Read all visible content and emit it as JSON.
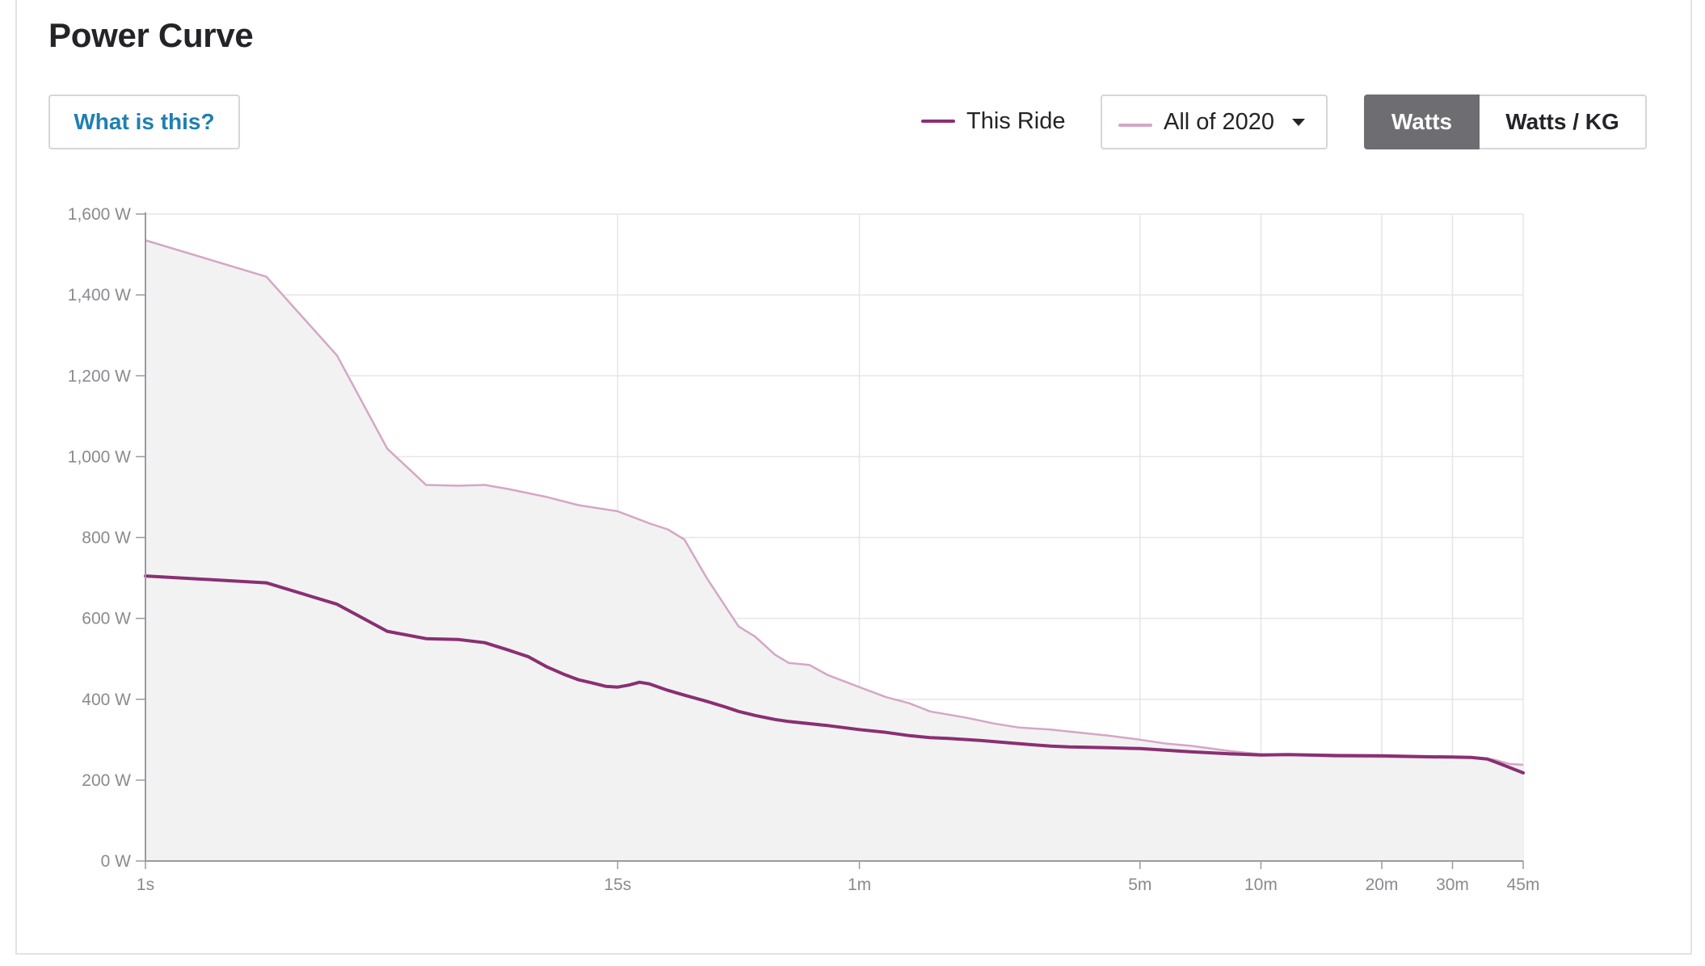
{
  "header": {
    "title": "Power Curve"
  },
  "controls": {
    "what_is_this": "What is this?",
    "legend_this_ride": "This Ride",
    "comparison_select": "All of 2020",
    "unit_toggle": {
      "active": "Watts",
      "inactive": "Watts / KG"
    }
  },
  "colors": {
    "this_ride": "#8a2f72",
    "comparison": "#d4a7c6",
    "area_fill": "#f2f2f3",
    "grid": "#e6e6e8"
  },
  "chart_data": {
    "type": "line",
    "title": "Power Curve",
    "xlabel": "",
    "ylabel": "",
    "x_unit": "seconds",
    "x_scale": "log",
    "xlim": [
      1,
      2700
    ],
    "ylim": [
      0,
      1600
    ],
    "y_ticks": [
      {
        "value": 0,
        "label": "0 W"
      },
      {
        "value": 200,
        "label": "200 W"
      },
      {
        "value": 400,
        "label": "400 W"
      },
      {
        "value": 600,
        "label": "600 W"
      },
      {
        "value": 800,
        "label": "800 W"
      },
      {
        "value": 1000,
        "label": "1,000 W"
      },
      {
        "value": 1200,
        "label": "1,200 W"
      },
      {
        "value": 1400,
        "label": "1,400 W"
      },
      {
        "value": 1600,
        "label": "1,600 W"
      }
    ],
    "x_ticks": [
      {
        "value": 1,
        "label": "1s"
      },
      {
        "value": 15,
        "label": "15s"
      },
      {
        "value": 60,
        "label": "1m"
      },
      {
        "value": 300,
        "label": "5m"
      },
      {
        "value": 600,
        "label": "10m"
      },
      {
        "value": 1200,
        "label": "20m"
      },
      {
        "value": 1800,
        "label": "30m"
      },
      {
        "value": 2700,
        "label": "45m"
      }
    ],
    "grid": true,
    "legend": "top-right",
    "series": [
      {
        "name": "All of 2020",
        "style": "area",
        "points": [
          [
            1,
            1535
          ],
          [
            2,
            1445
          ],
          [
            3,
            1250
          ],
          [
            4,
            1020
          ],
          [
            5,
            930
          ],
          [
            6,
            928
          ],
          [
            7,
            930
          ],
          [
            8,
            920
          ],
          [
            10,
            900
          ],
          [
            12,
            880
          ],
          [
            15,
            865
          ],
          [
            18,
            835
          ],
          [
            20,
            820
          ],
          [
            22,
            795
          ],
          [
            25,
            700
          ],
          [
            30,
            580
          ],
          [
            33,
            555
          ],
          [
            37,
            510
          ],
          [
            40,
            490
          ],
          [
            45,
            485
          ],
          [
            50,
            460
          ],
          [
            60,
            430
          ],
          [
            70,
            405
          ],
          [
            80,
            390
          ],
          [
            90,
            370
          ],
          [
            110,
            355
          ],
          [
            130,
            340
          ],
          [
            150,
            330
          ],
          [
            180,
            325
          ],
          [
            200,
            320
          ],
          [
            250,
            310
          ],
          [
            300,
            300
          ],
          [
            350,
            290
          ],
          [
            400,
            285
          ],
          [
            500,
            272
          ],
          [
            600,
            264
          ],
          [
            700,
            262
          ],
          [
            900,
            258
          ],
          [
            1200,
            257
          ],
          [
            1500,
            256
          ],
          [
            1800,
            255
          ],
          [
            2100,
            254
          ],
          [
            2300,
            250
          ],
          [
            2500,
            240
          ],
          [
            2700,
            238
          ]
        ]
      },
      {
        "name": "This Ride",
        "style": "line",
        "points": [
          [
            1,
            705
          ],
          [
            2,
            688
          ],
          [
            3,
            635
          ],
          [
            4,
            568
          ],
          [
            5,
            550
          ],
          [
            6,
            548
          ],
          [
            7,
            540
          ],
          [
            8,
            522
          ],
          [
            9,
            505
          ],
          [
            10,
            480
          ],
          [
            11,
            462
          ],
          [
            12,
            448
          ],
          [
            13,
            440
          ],
          [
            14,
            432
          ],
          [
            15,
            430
          ],
          [
            16,
            435
          ],
          [
            17,
            442
          ],
          [
            18,
            438
          ],
          [
            20,
            422
          ],
          [
            22,
            410
          ],
          [
            25,
            395
          ],
          [
            28,
            380
          ],
          [
            30,
            370
          ],
          [
            33,
            360
          ],
          [
            37,
            350
          ],
          [
            40,
            345
          ],
          [
            50,
            335
          ],
          [
            60,
            325
          ],
          [
            70,
            318
          ],
          [
            80,
            310
          ],
          [
            90,
            305
          ],
          [
            100,
            303
          ],
          [
            120,
            298
          ],
          [
            150,
            290
          ],
          [
            180,
            284
          ],
          [
            200,
            282
          ],
          [
            250,
            280
          ],
          [
            300,
            278
          ],
          [
            400,
            270
          ],
          [
            500,
            265
          ],
          [
            600,
            262
          ],
          [
            700,
            263
          ],
          [
            900,
            261
          ],
          [
            1200,
            260
          ],
          [
            1500,
            258
          ],
          [
            1800,
            257
          ],
          [
            2000,
            256
          ],
          [
            2200,
            252
          ],
          [
            2400,
            238
          ],
          [
            2700,
            218
          ]
        ]
      }
    ]
  }
}
